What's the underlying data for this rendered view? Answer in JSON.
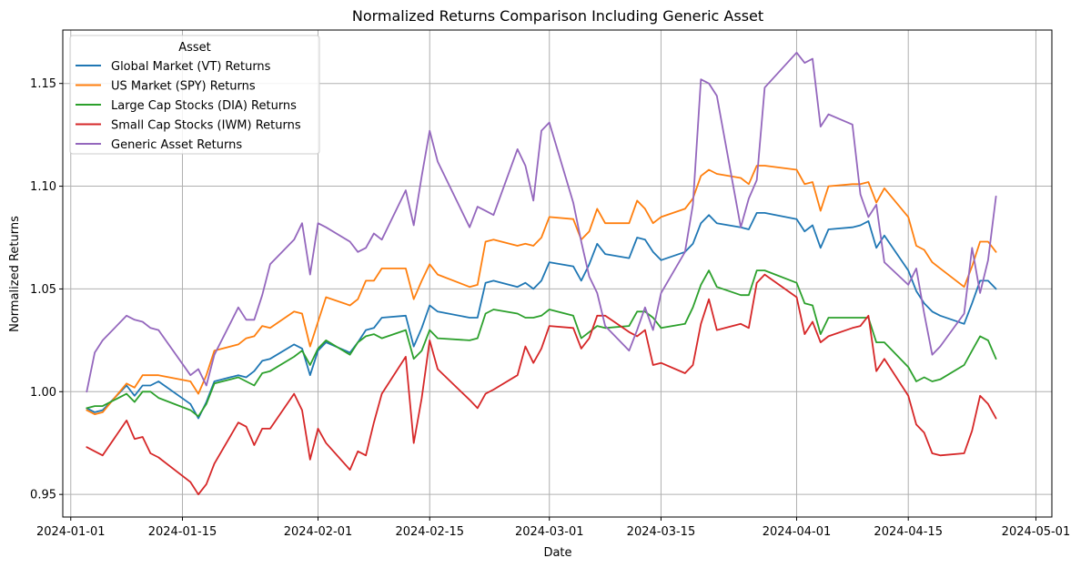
{
  "chart_data": {
    "type": "line",
    "title": "Normalized Returns Comparison Including Generic Asset",
    "xlabel": "Date",
    "ylabel": "Normalized Returns",
    "xlim": [
      "2023-12-31",
      "2024-05-03"
    ],
    "ylim": [
      0.939,
      1.176
    ],
    "grid": true,
    "legend_title": "Asset",
    "legend_position": "top-left",
    "x_ticks": [
      "2024-01-01",
      "2024-01-15",
      "2024-02-01",
      "2024-02-15",
      "2024-03-01",
      "2024-03-15",
      "2024-04-01",
      "2024-04-15",
      "2024-05-01"
    ],
    "y_ticks": [
      0.95,
      1.0,
      1.05,
      1.1,
      1.15
    ],
    "x": [
      "2024-01-03",
      "2024-01-04",
      "2024-01-05",
      "2024-01-08",
      "2024-01-09",
      "2024-01-10",
      "2024-01-11",
      "2024-01-12",
      "2024-01-16",
      "2024-01-17",
      "2024-01-18",
      "2024-01-19",
      "2024-01-22",
      "2024-01-23",
      "2024-01-24",
      "2024-01-25",
      "2024-01-26",
      "2024-01-29",
      "2024-01-30",
      "2024-01-31",
      "2024-02-01",
      "2024-02-02",
      "2024-02-05",
      "2024-02-06",
      "2024-02-07",
      "2024-02-08",
      "2024-02-09",
      "2024-02-12",
      "2024-02-13",
      "2024-02-14",
      "2024-02-15",
      "2024-02-16",
      "2024-02-20",
      "2024-02-21",
      "2024-02-22",
      "2024-02-23",
      "2024-02-26",
      "2024-02-27",
      "2024-02-28",
      "2024-02-29",
      "2024-03-01",
      "2024-03-04",
      "2024-03-05",
      "2024-03-06",
      "2024-03-07",
      "2024-03-08",
      "2024-03-11",
      "2024-03-12",
      "2024-03-13",
      "2024-03-14",
      "2024-03-15",
      "2024-03-18",
      "2024-03-19",
      "2024-03-20",
      "2024-03-21",
      "2024-03-22",
      "2024-03-25",
      "2024-03-26",
      "2024-03-27",
      "2024-03-28",
      "2024-04-01",
      "2024-04-02",
      "2024-04-03",
      "2024-04-04",
      "2024-04-05",
      "2024-04-08",
      "2024-04-09",
      "2024-04-10",
      "2024-04-11",
      "2024-04-12",
      "2024-04-15",
      "2024-04-16",
      "2024-04-17",
      "2024-04-18",
      "2024-04-19",
      "2024-04-22",
      "2024-04-23",
      "2024-04-24",
      "2024-04-25",
      "2024-04-26"
    ],
    "series": [
      {
        "name": "Global Market (VT) Returns",
        "color": "#1f77b4",
        "values": [
          0.992,
          0.99,
          0.991,
          1.003,
          0.998,
          1.003,
          1.003,
          1.005,
          0.994,
          0.987,
          0.995,
          1.005,
          1.008,
          1.007,
          1.01,
          1.015,
          1.016,
          1.023,
          1.021,
          1.008,
          1.02,
          1.024,
          1.019,
          1.024,
          1.03,
          1.031,
          1.036,
          1.037,
          1.022,
          1.031,
          1.042,
          1.039,
          1.036,
          1.036,
          1.053,
          1.054,
          1.051,
          1.053,
          1.05,
          1.054,
          1.063,
          1.061,
          1.054,
          1.062,
          1.072,
          1.067,
          1.065,
          1.075,
          1.074,
          1.068,
          1.064,
          1.068,
          1.072,
          1.082,
          1.086,
          1.082,
          1.08,
          1.079,
          1.087,
          1.087,
          1.084,
          1.078,
          1.081,
          1.07,
          1.079,
          1.08,
          1.081,
          1.083,
          1.07,
          1.076,
          1.059,
          1.049,
          1.043,
          1.039,
          1.037,
          1.033,
          1.043,
          1.054,
          1.054,
          1.05
        ]
      },
      {
        "name": "US Market (SPY) Returns",
        "color": "#ff7f0e",
        "values": [
          0.991,
          0.989,
          0.99,
          1.004,
          1.002,
          1.008,
          1.008,
          1.008,
          1.005,
          0.999,
          1.008,
          1.02,
          1.023,
          1.026,
          1.027,
          1.032,
          1.031,
          1.039,
          1.038,
          1.022,
          1.034,
          1.046,
          1.042,
          1.045,
          1.054,
          1.054,
          1.06,
          1.06,
          1.045,
          1.054,
          1.062,
          1.057,
          1.051,
          1.052,
          1.073,
          1.074,
          1.071,
          1.072,
          1.071,
          1.075,
          1.085,
          1.084,
          1.074,
          1.078,
          1.089,
          1.082,
          1.082,
          1.093,
          1.089,
          1.082,
          1.085,
          1.089,
          1.094,
          1.105,
          1.108,
          1.106,
          1.104,
          1.101,
          1.11,
          1.11,
          1.108,
          1.101,
          1.102,
          1.088,
          1.1,
          1.101,
          1.101,
          1.102,
          1.092,
          1.099,
          1.085,
          1.071,
          1.069,
          1.063,
          1.06,
          1.051,
          1.061,
          1.073,
          1.073,
          1.068
        ]
      },
      {
        "name": "Large Cap Stocks (DIA) Returns",
        "color": "#2ca02c",
        "values": [
          0.992,
          0.993,
          0.993,
          0.999,
          0.995,
          1.0,
          1.0,
          0.997,
          0.991,
          0.988,
          0.994,
          1.004,
          1.007,
          1.005,
          1.003,
          1.009,
          1.01,
          1.017,
          1.02,
          1.013,
          1.021,
          1.025,
          1.018,
          1.024,
          1.027,
          1.028,
          1.026,
          1.03,
          1.016,
          1.02,
          1.03,
          1.026,
          1.025,
          1.026,
          1.038,
          1.04,
          1.038,
          1.036,
          1.036,
          1.037,
          1.04,
          1.037,
          1.026,
          1.029,
          1.032,
          1.031,
          1.032,
          1.039,
          1.039,
          1.036,
          1.031,
          1.033,
          1.041,
          1.052,
          1.059,
          1.051,
          1.047,
          1.047,
          1.059,
          1.059,
          1.053,
          1.043,
          1.042,
          1.028,
          1.036,
          1.036,
          1.036,
          1.036,
          1.024,
          1.024,
          1.012,
          1.005,
          1.007,
          1.005,
          1.006,
          1.013,
          1.02,
          1.027,
          1.025,
          1.016
        ]
      },
      {
        "name": "Small Cap Stocks (IWM) Returns",
        "color": "#d62728",
        "values": [
          0.973,
          0.971,
          0.969,
          0.986,
          0.977,
          0.978,
          0.97,
          0.968,
          0.956,
          0.95,
          0.955,
          0.965,
          0.985,
          0.983,
          0.974,
          0.982,
          0.982,
          0.999,
          0.991,
          0.967,
          0.982,
          0.975,
          0.962,
          0.971,
          0.969,
          0.985,
          0.999,
          1.017,
          0.975,
          0.997,
          1.025,
          1.011,
          0.996,
          0.992,
          0.999,
          1.001,
          1.008,
          1.022,
          1.014,
          1.021,
          1.032,
          1.031,
          1.021,
          1.026,
          1.037,
          1.037,
          1.029,
          1.027,
          1.03,
          1.013,
          1.014,
          1.009,
          1.013,
          1.033,
          1.045,
          1.03,
          1.033,
          1.031,
          1.053,
          1.057,
          1.046,
          1.028,
          1.034,
          1.024,
          1.027,
          1.031,
          1.032,
          1.037,
          1.01,
          1.016,
          0.998,
          0.984,
          0.98,
          0.97,
          0.969,
          0.97,
          0.981,
          0.998,
          0.994,
          0.987
        ]
      },
      {
        "name": "Generic Asset Returns",
        "color": "#9467bd",
        "values": [
          1.0,
          1.019,
          1.025,
          1.037,
          1.035,
          1.034,
          1.031,
          1.03,
          1.008,
          1.011,
          1.003,
          1.018,
          1.041,
          1.035,
          1.035,
          1.047,
          1.062,
          1.074,
          1.082,
          1.057,
          1.082,
          1.08,
          1.073,
          1.068,
          1.07,
          1.077,
          1.074,
          1.098,
          1.081,
          1.105,
          1.127,
          1.112,
          1.08,
          1.09,
          1.088,
          1.086,
          1.118,
          1.11,
          1.093,
          1.127,
          1.131,
          1.092,
          1.073,
          1.056,
          1.048,
          1.032,
          1.02,
          1.03,
          1.041,
          1.03,
          1.048,
          1.068,
          1.091,
          1.152,
          1.15,
          1.144,
          1.08,
          1.094,
          1.103,
          1.148,
          1.165,
          1.16,
          1.162,
          1.129,
          1.135,
          1.13,
          1.096,
          1.085,
          1.091,
          1.063,
          1.052,
          1.06,
          1.038,
          1.018,
          1.022,
          1.038,
          1.07,
          1.048,
          1.064,
          1.095
        ]
      }
    ]
  }
}
